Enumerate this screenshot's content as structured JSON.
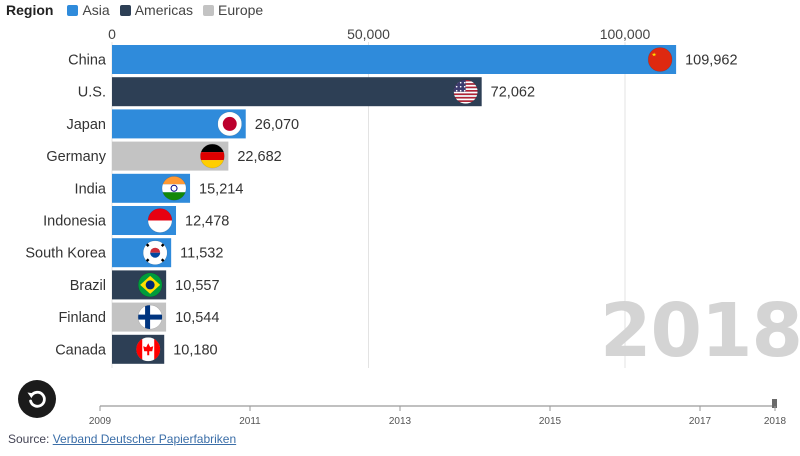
{
  "legend": {
    "title": "Region",
    "items": [
      {
        "name": "Asia",
        "color": "#2f8bdb"
      },
      {
        "name": "Americas",
        "color": "#2d3f55"
      },
      {
        "name": "Europe",
        "color": "#c3c3c3"
      }
    ]
  },
  "year_label": "2018",
  "source": {
    "prefix": "Source:",
    "link_text": "Verband Deutscher Papierfabriken"
  },
  "chart_data": {
    "type": "bar",
    "orientation": "horizontal",
    "year": "2018",
    "categories": [
      "China",
      "U.S.",
      "Japan",
      "Germany",
      "India",
      "Indonesia",
      "South Korea",
      "Brazil",
      "Finland",
      "Canada"
    ],
    "values": [
      109962,
      72062,
      26070,
      22682,
      15214,
      12478,
      11532,
      10557,
      10544,
      10180
    ],
    "value_labels": [
      "109,962",
      "72,062",
      "26,070",
      "22,682",
      "15,214",
      "12,478",
      "11,532",
      "10,557",
      "10,544",
      "10,180"
    ],
    "regions": [
      "Asia",
      "Americas",
      "Asia",
      "Europe",
      "Asia",
      "Asia",
      "Asia",
      "Americas",
      "Europe",
      "Americas"
    ],
    "flags": [
      "china-flag-icon",
      "us-flag-icon",
      "japan-flag-icon",
      "germany-flag-icon",
      "india-flag-icon",
      "indonesia-flag-icon",
      "south-korea-flag-icon",
      "brazil-flag-icon",
      "finland-flag-icon",
      "canada-flag-icon"
    ],
    "xlim": [
      0,
      110000
    ],
    "xticks": [
      0,
      50000,
      100000
    ],
    "xtick_labels": [
      "0",
      "50,000",
      "100,000"
    ],
    "grid": true,
    "legend_position": "top-left",
    "timeline": {
      "range": [
        2009,
        2018
      ],
      "tick_labels": [
        "2009",
        "2011",
        "2013",
        "2015",
        "2017",
        "2018"
      ],
      "current": 2018
    }
  }
}
